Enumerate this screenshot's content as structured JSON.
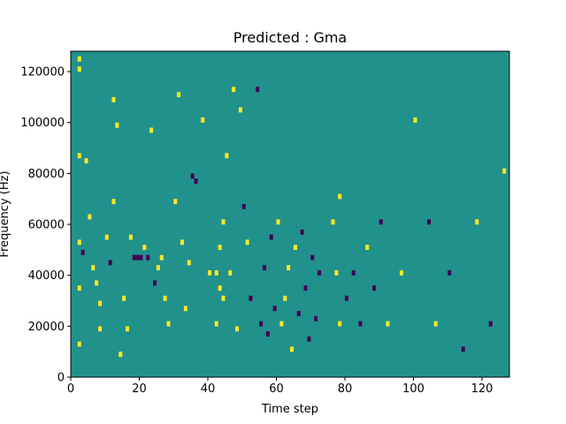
{
  "chart_data": {
    "type": "heatmap",
    "title": "Predicted : Gma",
    "xlabel": "Time step",
    "ylabel": "Frequency (Hz)",
    "xlim": [
      0,
      128
    ],
    "ylim": [
      0,
      128000
    ],
    "xticks": [
      0,
      20,
      40,
      60,
      80,
      100,
      120
    ],
    "xtick_labels": [
      "0",
      "20",
      "40",
      "60",
      "80",
      "100",
      "120"
    ],
    "yticks": [
      0,
      20000,
      40000,
      60000,
      80000,
      100000,
      120000
    ],
    "ytick_labels": [
      "0",
      "20000",
      "40000",
      "60000",
      "80000",
      "100000",
      "120000"
    ],
    "n_time_steps": 128,
    "n_freq_bins": 64,
    "cell_height_hz": 2000,
    "levels": [
      -1,
      0,
      1
    ],
    "colors": {
      "-1": "#440154",
      "0": "#21918c",
      "1": "#fde725"
    },
    "background_value": 0,
    "nonzero_cells": [
      {
        "t": 2,
        "f": 124000,
        "v": 1
      },
      {
        "t": 2,
        "f": 120000,
        "v": 1
      },
      {
        "t": 2,
        "f": 86000,
        "v": 1
      },
      {
        "t": 2,
        "f": 52000,
        "v": 1
      },
      {
        "t": 2,
        "f": 34000,
        "v": 1
      },
      {
        "t": 2,
        "f": 12000,
        "v": 1
      },
      {
        "t": 3,
        "f": 48000,
        "v": -1
      },
      {
        "t": 4,
        "f": 84000,
        "v": 1
      },
      {
        "t": 5,
        "f": 62000,
        "v": 1
      },
      {
        "t": 6,
        "f": 42000,
        "v": 1
      },
      {
        "t": 7,
        "f": 36000,
        "v": 1
      },
      {
        "t": 8,
        "f": 28000,
        "v": 1
      },
      {
        "t": 8,
        "f": 18000,
        "v": 1
      },
      {
        "t": 10,
        "f": 54000,
        "v": 1
      },
      {
        "t": 11,
        "f": 44000,
        "v": -1
      },
      {
        "t": 12,
        "f": 68000,
        "v": 1
      },
      {
        "t": 12,
        "f": 108000,
        "v": 1
      },
      {
        "t": 13,
        "f": 98000,
        "v": 1
      },
      {
        "t": 14,
        "f": 8000,
        "v": 1
      },
      {
        "t": 15,
        "f": 30000,
        "v": 1
      },
      {
        "t": 16,
        "f": 18000,
        "v": 1
      },
      {
        "t": 17,
        "f": 54000,
        "v": 1
      },
      {
        "t": 18,
        "f": 46000,
        "v": -1
      },
      {
        "t": 19,
        "f": 46000,
        "v": -1
      },
      {
        "t": 20,
        "f": 46000,
        "v": -1
      },
      {
        "t": 21,
        "f": 50000,
        "v": 1
      },
      {
        "t": 22,
        "f": 46000,
        "v": -1
      },
      {
        "t": 23,
        "f": 96000,
        "v": 1
      },
      {
        "t": 24,
        "f": 36000,
        "v": -1
      },
      {
        "t": 25,
        "f": 42000,
        "v": 1
      },
      {
        "t": 26,
        "f": 46000,
        "v": 1
      },
      {
        "t": 27,
        "f": 30000,
        "v": 1
      },
      {
        "t": 28,
        "f": 20000,
        "v": 1
      },
      {
        "t": 30,
        "f": 68000,
        "v": 1
      },
      {
        "t": 31,
        "f": 110000,
        "v": 1
      },
      {
        "t": 32,
        "f": 52000,
        "v": 1
      },
      {
        "t": 33,
        "f": 26000,
        "v": 1
      },
      {
        "t": 34,
        "f": 44000,
        "v": 1
      },
      {
        "t": 35,
        "f": 78000,
        "v": -1
      },
      {
        "t": 36,
        "f": 76000,
        "v": -1
      },
      {
        "t": 38,
        "f": 100000,
        "v": 1
      },
      {
        "t": 40,
        "f": 40000,
        "v": 1
      },
      {
        "t": 42,
        "f": 40000,
        "v": 1
      },
      {
        "t": 42,
        "f": 20000,
        "v": 1
      },
      {
        "t": 43,
        "f": 50000,
        "v": 1
      },
      {
        "t": 43,
        "f": 34000,
        "v": 1
      },
      {
        "t": 44,
        "f": 60000,
        "v": 1
      },
      {
        "t": 44,
        "f": 30000,
        "v": 1
      },
      {
        "t": 45,
        "f": 86000,
        "v": 1
      },
      {
        "t": 46,
        "f": 40000,
        "v": 1
      },
      {
        "t": 47,
        "f": 112000,
        "v": 1
      },
      {
        "t": 48,
        "f": 18000,
        "v": 1
      },
      {
        "t": 49,
        "f": 104000,
        "v": 1
      },
      {
        "t": 50,
        "f": 66000,
        "v": -1
      },
      {
        "t": 51,
        "f": 52000,
        "v": 1
      },
      {
        "t": 52,
        "f": 30000,
        "v": -1
      },
      {
        "t": 54,
        "f": 112000,
        "v": -1
      },
      {
        "t": 55,
        "f": 20000,
        "v": -1
      },
      {
        "t": 56,
        "f": 42000,
        "v": -1
      },
      {
        "t": 57,
        "f": 16000,
        "v": -1
      },
      {
        "t": 58,
        "f": 54000,
        "v": -1
      },
      {
        "t": 59,
        "f": 26000,
        "v": -1
      },
      {
        "t": 60,
        "f": 60000,
        "v": 1
      },
      {
        "t": 61,
        "f": 20000,
        "v": 1
      },
      {
        "t": 62,
        "f": 30000,
        "v": 1
      },
      {
        "t": 63,
        "f": 42000,
        "v": 1
      },
      {
        "t": 64,
        "f": 10000,
        "v": 1
      },
      {
        "t": 65,
        "f": 50000,
        "v": 1
      },
      {
        "t": 66,
        "f": 24000,
        "v": -1
      },
      {
        "t": 67,
        "f": 56000,
        "v": -1
      },
      {
        "t": 68,
        "f": 34000,
        "v": -1
      },
      {
        "t": 69,
        "f": 14000,
        "v": -1
      },
      {
        "t": 70,
        "f": 46000,
        "v": -1
      },
      {
        "t": 71,
        "f": 22000,
        "v": -1
      },
      {
        "t": 72,
        "f": 40000,
        "v": -1
      },
      {
        "t": 76,
        "f": 60000,
        "v": 1
      },
      {
        "t": 77,
        "f": 40000,
        "v": 1
      },
      {
        "t": 78,
        "f": 20000,
        "v": 1
      },
      {
        "t": 78,
        "f": 70000,
        "v": 1
      },
      {
        "t": 80,
        "f": 30000,
        "v": -1
      },
      {
        "t": 82,
        "f": 40000,
        "v": -1
      },
      {
        "t": 84,
        "f": 20000,
        "v": -1
      },
      {
        "t": 86,
        "f": 50000,
        "v": 1
      },
      {
        "t": 88,
        "f": 34000,
        "v": -1
      },
      {
        "t": 90,
        "f": 60000,
        "v": -1
      },
      {
        "t": 92,
        "f": 20000,
        "v": 1
      },
      {
        "t": 96,
        "f": 40000,
        "v": 1
      },
      {
        "t": 100,
        "f": 100000,
        "v": 1
      },
      {
        "t": 104,
        "f": 60000,
        "v": -1
      },
      {
        "t": 106,
        "f": 20000,
        "v": 1
      },
      {
        "t": 110,
        "f": 40000,
        "v": -1
      },
      {
        "t": 114,
        "f": 10000,
        "v": -1
      },
      {
        "t": 118,
        "f": 60000,
        "v": 1
      },
      {
        "t": 122,
        "f": 20000,
        "v": -1
      },
      {
        "t": 126,
        "f": 80000,
        "v": 1
      }
    ]
  }
}
